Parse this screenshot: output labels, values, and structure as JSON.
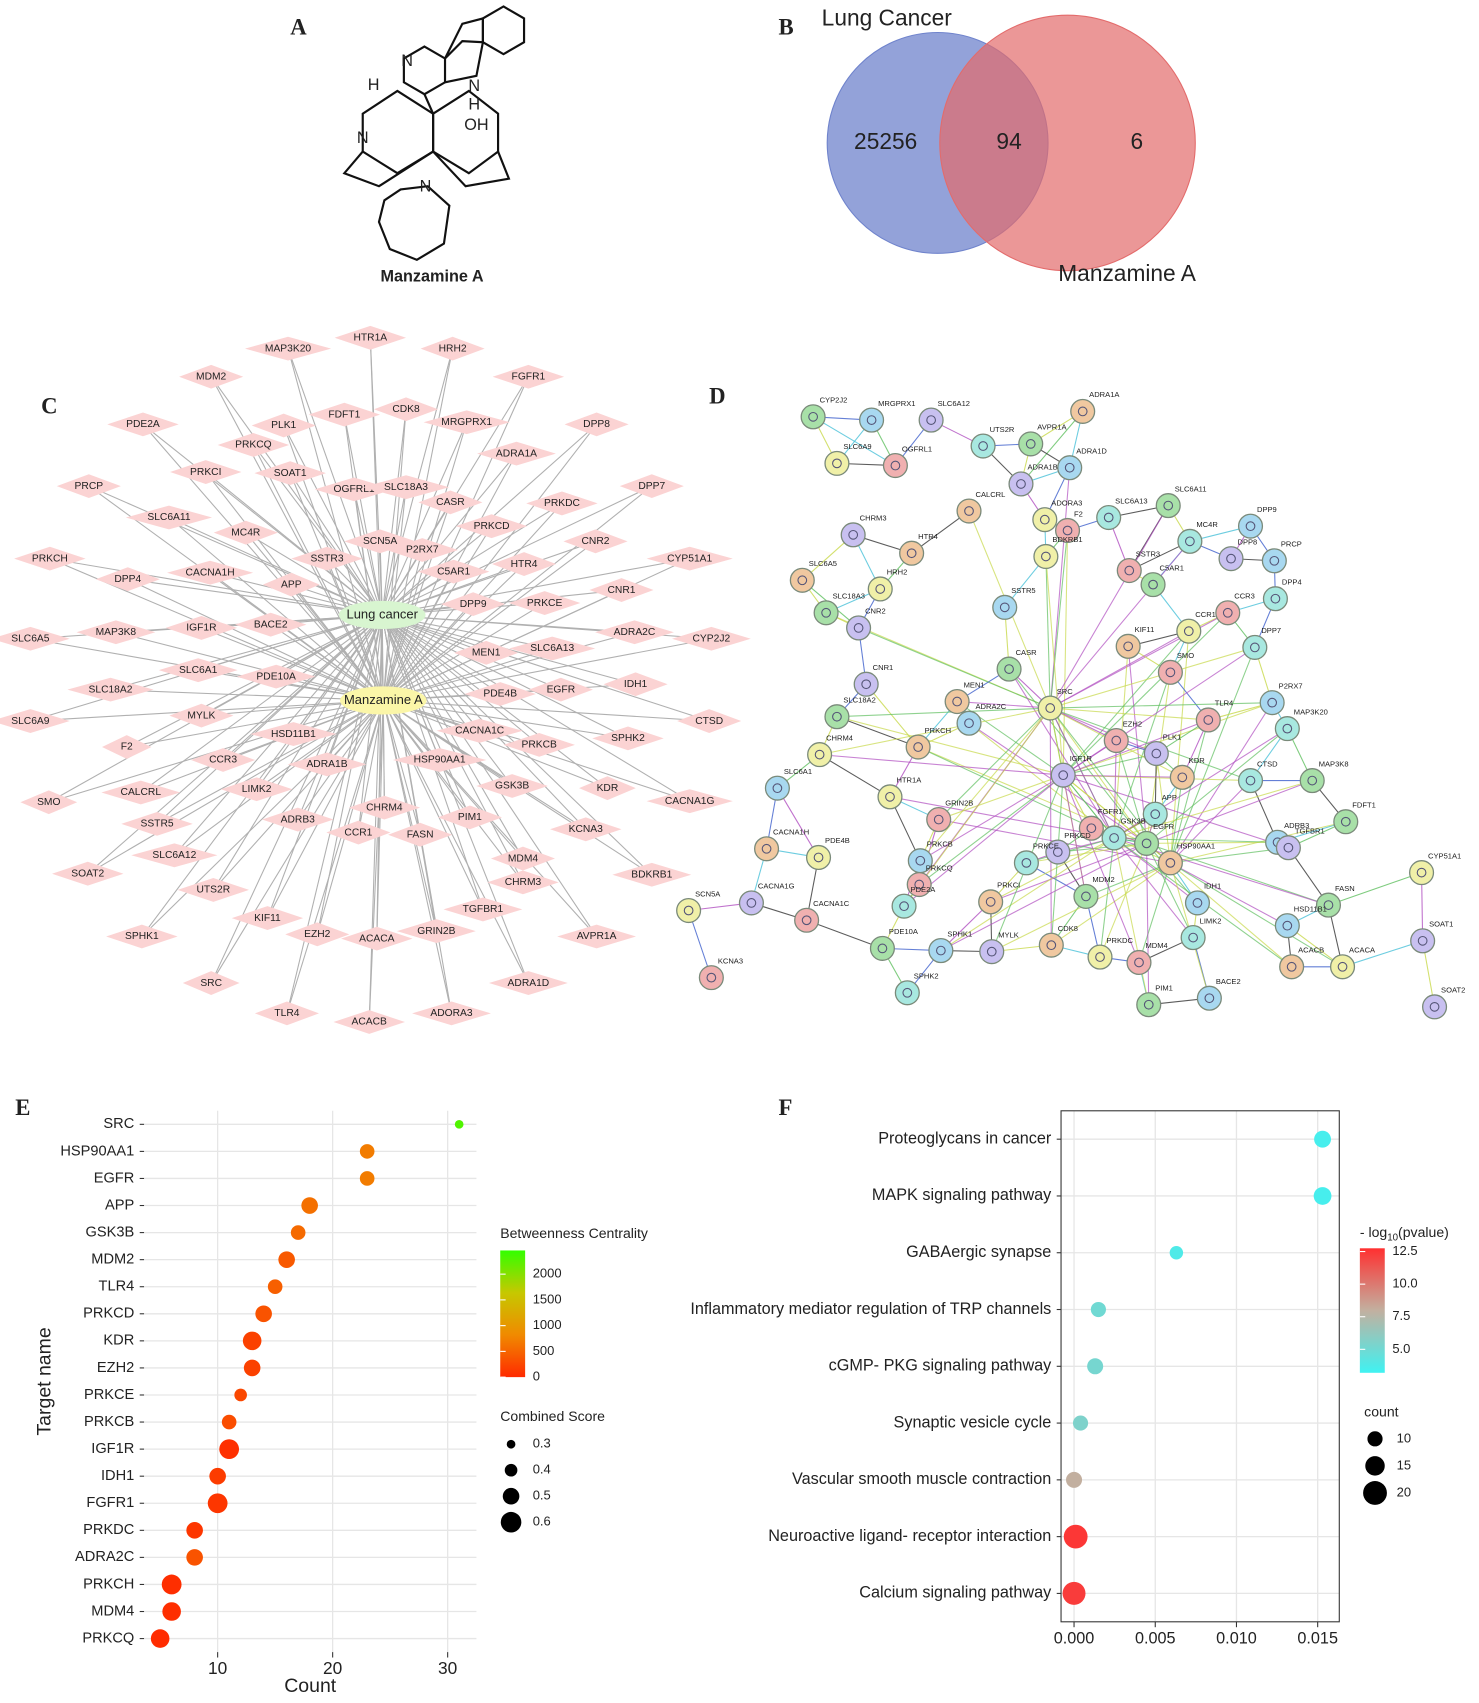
{
  "panels": {
    "a": "A",
    "b": "B",
    "c": "C",
    "d": "D",
    "e": "E",
    "f": "F"
  },
  "structure": {
    "atoms": [
      "N",
      "N",
      "H",
      "H",
      "OH",
      "N",
      "N"
    ],
    "name": "Manzamine A"
  },
  "venn": {
    "sets": [
      "Lung Cancer",
      "Manzamine A"
    ],
    "colors": [
      "#6f83cc",
      "#e36b6b"
    ],
    "only_first": 25256,
    "both": 94,
    "only_second": 6
  },
  "network_c": {
    "hubs": [
      "Lung cancer",
      "Manzamine A"
    ],
    "nodes": [
      "MAP3K20",
      "HTR1A",
      "HRH2",
      "MDM2",
      "FGFR1",
      "PDE2A",
      "PLK1",
      "FDFT1",
      "CDK8",
      "MRGPRX1",
      "DPP8",
      "PRKCQ",
      "ADRA1A",
      "PRKCI",
      "PRCP",
      "SOAT1",
      "OGFRL1",
      "SLC18A3",
      "DPP7",
      "CASR",
      "PRKDC",
      "SLC6A11",
      "MC4R",
      "PRKCD",
      "SCN5A",
      "CNR2",
      "P2RX7",
      "PRKCH",
      "SSTR3",
      "C5AR1",
      "CYP51A1",
      "CACNA1H",
      "HTR4",
      "DPP4",
      "APP",
      "CNR1",
      "DPP9",
      "PRKCE",
      "IGF1R",
      "BACE2",
      "SLC6A5",
      "MAP3K8",
      "ADRA2C",
      "CYP2J2",
      "SLC6A13",
      "MEN1",
      "SLC6A1",
      "IDH1",
      "SLC18A2",
      "PDE10A",
      "PDE4B",
      "EGFR",
      "CTSD",
      "SLC6A9",
      "MYLK",
      "CACNA1C",
      "SPHK2",
      "F2",
      "HSD11B1",
      "PRKCB",
      "CCR3",
      "HSP90AA1",
      "ADRA1B",
      "SMO",
      "KDR",
      "CALCRL",
      "LIMK2",
      "GSK3B",
      "CACNA1G",
      "CHRM4",
      "SSTR5",
      "ADRB3",
      "PIM1",
      "FASN",
      "KCNA3",
      "CCR1",
      "SLC6A12",
      "MDM4",
      "BDKRB1",
      "SOAT2",
      "CHRM3",
      "UTS2R",
      "TGFBR1",
      "KIF11",
      "AVPR1A",
      "SPHK1",
      "EZH2",
      "GRIN2B",
      "ACACA",
      "SRC",
      "ADRA1D",
      "TLR4",
      "ADORA3",
      "ACACB"
    ]
  },
  "network_d": {
    "nodes": [
      "CYP2J2",
      "MRGPRX1",
      "SLC6A12",
      "ADRA1A",
      "SLC6A9",
      "OGFRL1",
      "UTS2R",
      "AVPR1A",
      "ADRA1D",
      "ADRA1B",
      "CALCRL",
      "ADORA3",
      "F2",
      "SLC6A13",
      "SLC6A11",
      "DPP9",
      "CHRM3",
      "HTR4",
      "BDKRB1",
      "SSTR3",
      "MC4R",
      "C5AR1",
      "PRCP",
      "DPP8",
      "SLC6A5",
      "HRH2",
      "CCR3",
      "DPP4",
      "SLC18A3",
      "SSTR5",
      "CNR2",
      "KIF11",
      "CCR1",
      "SMO",
      "DPP7",
      "CASR",
      "P2RX7",
      "CNR1",
      "MEN1",
      "SRC",
      "TLR4",
      "MAP3K20",
      "SLC18A2",
      "ADRA2C",
      "PLK1",
      "PRKCH",
      "CHRM4",
      "EZH2",
      "CTSD",
      "MAP3K8",
      "SLC6A1",
      "IGF1R",
      "KDR",
      "HTR1A",
      "GRIN2B",
      "APP",
      "FDFT1",
      "ADRB3",
      "TGFBR1",
      "CACNA1H",
      "PDE4B",
      "FGFR1",
      "GSK3B",
      "EGFR",
      "PRKCB",
      "PRKCD",
      "HSP90AA1",
      "CYP51A1",
      "PRKCQ",
      "PRKCE",
      "MDM2",
      "IDH1",
      "CACNA1G",
      "PRKCI",
      "SCN5A",
      "CACNA1C",
      "PDE2A",
      "FASN",
      "HSD11B1",
      "SOAT1",
      "CDK8",
      "PRKDC",
      "MDM4",
      "LIMK2",
      "PDE10A",
      "SPHK1",
      "MYLK",
      "ACACB",
      "ACACA",
      "KCNA3",
      "SPHK2",
      "PIM1",
      "BACE2",
      "SOAT2"
    ]
  },
  "chart_data": [
    {
      "type": "dot",
      "y_label": "Target name",
      "x_label": "Count",
      "categories": [
        "SRC",
        "HSP90AA1",
        "EGFR",
        "APP",
        "GSK3B",
        "MDM2",
        "TLR4",
        "PRKCD",
        "KDR",
        "EZH2",
        "PRKCE",
        "PRKCB",
        "IGF1R",
        "IDH1",
        "FGFR1",
        "PRKDC",
        "ADRA2C",
        "PRKCH",
        "MDM4",
        "PRKCQ"
      ],
      "values": [
        31,
        23,
        23,
        18,
        17,
        16,
        15,
        14,
        13,
        13,
        12,
        11,
        11,
        10,
        10,
        8,
        8,
        6,
        6,
        5
      ],
      "color_values": [
        2300,
        700,
        700,
        600,
        550,
        400,
        450,
        350,
        200,
        200,
        250,
        300,
        50,
        150,
        100,
        100,
        350,
        30,
        30,
        20
      ],
      "size_values": [
        0.3,
        0.45,
        0.45,
        0.5,
        0.45,
        0.5,
        0.45,
        0.5,
        0.55,
        0.5,
        0.4,
        0.45,
        0.58,
        0.5,
        0.58,
        0.5,
        0.5,
        0.58,
        0.55,
        0.55
      ],
      "xlim": [
        3.6,
        32.5
      ],
      "xticks": [
        10,
        20,
        30
      ],
      "grid": true,
      "color_legend": {
        "title": "Betweenness Centrality",
        "lim": [
          0,
          2460
        ],
        "ticks": [
          0,
          500,
          1000,
          1500,
          2000
        ],
        "colors": [
          "#ff2a00",
          "#f08a00",
          "#c6c800",
          "#33ff00"
        ]
      },
      "size_legend": {
        "title": "Combined Score",
        "ticks": [
          0.3,
          0.4,
          0.5,
          0.6
        ]
      }
    },
    {
      "type": "dot",
      "categories": [
        "Proteoglycans in cancer",
        "MAPK signaling pathway",
        "GABAergic synapse",
        "Inflammatory mediator regulation of TRP channels",
        "cGMP- PKG signaling pathway",
        "Synaptic vesicle cycle",
        "Vascular smooth muscle contraction",
        "Neuroactive ligand- receptor interaction",
        "Calcium signaling pathway"
      ],
      "values": [
        0.0153,
        0.0153,
        0.0063,
        0.0015,
        0.0013,
        0.0004,
        0.0,
        0.0001,
        0.0
      ],
      "color_values": [
        3.5,
        3.5,
        3.8,
        5.0,
        5.2,
        5.5,
        8.0,
        12.5,
        12.3
      ],
      "size_values": [
        12,
        13,
        8,
        10,
        11,
        10,
        11,
        20,
        19
      ],
      "xlim": [
        -0.0008,
        0.01633
      ],
      "xticks": [
        {
          "value": 0,
          "label": "0.000"
        },
        {
          "value": 0.005,
          "label": "0.005"
        },
        {
          "value": 0.01,
          "label": "0.010"
        },
        {
          "value": 0.015,
          "label": "0.015"
        }
      ],
      "grid": true,
      "color_legend": {
        "title_parts": [
          "- log",
          "10",
          "(pvalue)"
        ],
        "lim": [
          3.2,
          12.75
        ],
        "ticks": [
          {
            "value": 5,
            "label": "5.0"
          },
          {
            "value": 7.5,
            "label": "7.5"
          },
          {
            "value": 10,
            "label": "10.0"
          },
          {
            "value": 12.5,
            "label": "12.5"
          }
        ],
        "colors": [
          "#3ff2f2",
          "#c2b0a0",
          "#ff3030"
        ]
      },
      "size_legend": {
        "title": "count",
        "ticks": [
          10,
          15,
          20
        ]
      }
    }
  ]
}
